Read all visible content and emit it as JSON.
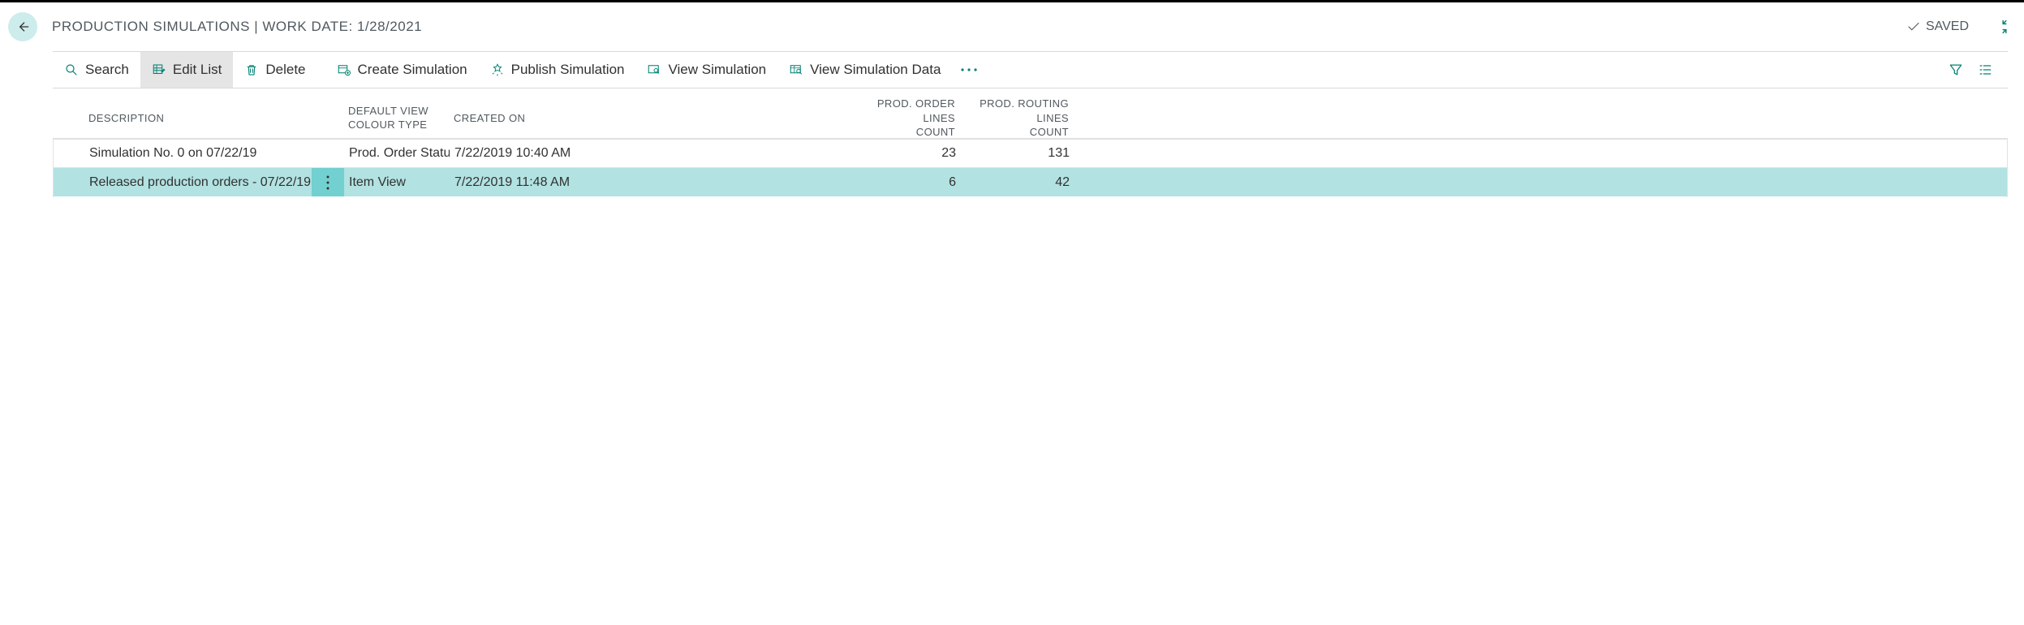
{
  "colors": {
    "accent": "#008272",
    "row_selected_bg": "#b2e2e2",
    "row_action_selected_bg": "#72d0d0",
    "back_btn_bg": "#cdecec",
    "border": "#e1e1e1",
    "text": "#323130",
    "muted": "#50595f"
  },
  "header": {
    "title": "PRODUCTION SIMULATIONS | WORK DATE: 1/28/2021",
    "saved_label": "SAVED"
  },
  "toolbar": {
    "search": "Search",
    "edit_list": "Edit List",
    "delete": "Delete",
    "create_sim": "Create Simulation",
    "publish_sim": "Publish Simulation",
    "view_sim": "View Simulation",
    "view_sim_data": "View Simulation Data"
  },
  "columns": {
    "description": "DESCRIPTION",
    "default_view_l1": "DEFAULT VIEW",
    "default_view_l2": "COLOUR TYPE",
    "created_on": "CREATED ON",
    "order_lines_l1": "PROD. ORDER LINES",
    "order_lines_l2": "COUNT",
    "routing_lines_l1": "PROD. ROUTING LINES",
    "routing_lines_l2": "COUNT"
  },
  "rows": [
    {
      "description": "Simulation No. 0 on 07/22/19",
      "colour_type": "Prod. Order Status",
      "created_on": "7/22/2019 10:40 AM",
      "order_lines": "23",
      "routing_lines": "131",
      "selected": false
    },
    {
      "description": "Released production orders - 07/22/19",
      "colour_type": "Item View",
      "created_on": "7/22/2019 11:48 AM",
      "order_lines": "6",
      "routing_lines": "42",
      "selected": true
    }
  ]
}
